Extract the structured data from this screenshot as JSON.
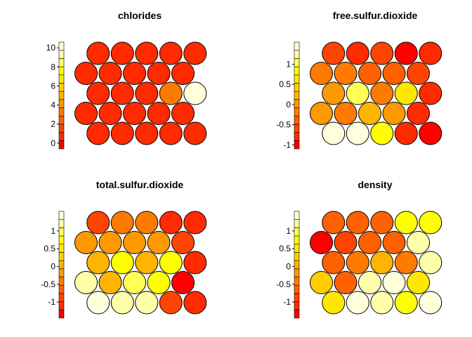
{
  "palette": [
    "#FF0000",
    "#FF2A00",
    "#FF4400",
    "#FF6000",
    "#FF7B00",
    "#FF9900",
    "#FFB400",
    "#FFCE00",
    "#FFE800",
    "#FFFF00",
    "#FFFF55",
    "#FFFFAA",
    "#FFFFDD"
  ],
  "chart_data": [
    {
      "type": "heatmap",
      "title": "chlorides",
      "ylim": [
        -0.6,
        10.6
      ],
      "ticks": [
        0,
        2,
        4,
        6,
        8,
        10
      ],
      "tick_labels": [
        "0",
        "2",
        "4",
        "6",
        "8",
        "10"
      ],
      "rows": [
        [
          0.6,
          0.3,
          0.4,
          0.7,
          0.8
        ],
        [
          0.5,
          0.4,
          0.3,
          0.6,
          0.8
        ],
        [
          0.3,
          0.3,
          0.4,
          3.3,
          10.4
        ],
        [
          0.3,
          0.3,
          0.3,
          0.4,
          0.7
        ],
        [
          0.3,
          0.4,
          0.3,
          0.6,
          0.8
        ]
      ]
    },
    {
      "type": "heatmap",
      "title": "free.sulfur.dioxide",
      "ylim": [
        -1.1,
        1.55
      ],
      "ticks": [
        1,
        0.5,
        0,
        -0.5,
        -1
      ],
      "tick_labels": [
        "1",
        "0.5",
        "0",
        "-0.5",
        "-1"
      ],
      "rows": [
        [
          -0.55,
          -0.8,
          -0.6,
          -0.9,
          -0.7
        ],
        [
          -0.2,
          -0.2,
          -0.3,
          -0.45,
          -0.6
        ],
        [
          0.0,
          1.05,
          -0.2,
          0.6,
          -0.85
        ],
        [
          0.05,
          -0.2,
          0.25,
          0.05,
          -0.7
        ],
        [
          1.5,
          1.5,
          0.8,
          -0.8,
          -0.9
        ]
      ]
    },
    {
      "type": "heatmap",
      "title": "total.sulfur.dioxide",
      "ylim": [
        -1.45,
        1.55
      ],
      "ticks": [
        1,
        0.5,
        0,
        -0.5,
        -1
      ],
      "tick_labels": [
        "1",
        "0.5",
        "0",
        "-0.5",
        "-1"
      ],
      "rows": [
        [
          -0.95,
          -0.35,
          -0.3,
          -1.2,
          -1.1
        ],
        [
          -0.2,
          -0.15,
          -0.15,
          -0.2,
          -0.9
        ],
        [
          0.05,
          0.65,
          0.1,
          0.65,
          -1.0
        ],
        [
          1.2,
          0.1,
          1.05,
          0.75,
          -1.3
        ],
        [
          1.5,
          1.25,
          1.2,
          -0.8,
          -1.15
        ]
      ]
    },
    {
      "type": "heatmap",
      "title": "density",
      "ylim": [
        -1.45,
        1.55
      ],
      "ticks": [
        1,
        0.5,
        0,
        -0.5,
        -1
      ],
      "tick_labels": [
        "1",
        "0.5",
        "0",
        "-0.5",
        "-1"
      ],
      "rows": [
        [
          -0.75,
          -0.75,
          -0.65,
          0.8,
          0.65
        ],
        [
          -1.35,
          -0.9,
          -0.75,
          -0.55,
          1.15
        ],
        [
          -0.55,
          -0.3,
          0.1,
          -0.3,
          1.3
        ],
        [
          0.2,
          -0.55,
          1.3,
          1.35,
          0.6
        ],
        [
          0.6,
          1.4,
          1.3,
          0.75,
          1.45
        ]
      ]
    }
  ]
}
